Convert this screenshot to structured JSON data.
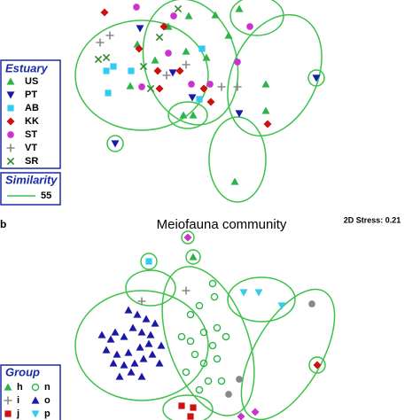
{
  "chart_data": [
    {
      "type": "scatter",
      "legend_title": "Estuary",
      "similarity": {
        "label": "Similarity",
        "value": 55
      },
      "series": [
        {
          "name": "US",
          "color": "#2db34a",
          "marker": "triangle-up",
          "x": [
            67,
            110,
            133,
            178,
            220,
            130,
            153,
            190,
            127,
            138,
            75,
            95,
            185,
            220,
            163
          ],
          "y": [
            123,
            190,
            202,
            180,
            125,
            162,
            155,
            210,
            90,
            90,
            170,
            152,
            15,
            95,
            203
          ]
        },
        {
          "name": "PT",
          "color": "#1a1aa6",
          "marker": "triangle-down",
          "x": [
            277,
            50,
            190,
            137,
            115,
            78
          ],
          "y": [
            132,
            58,
            92,
            110,
            138,
            188
          ]
        },
        {
          "name": "AB",
          "color": "#33ccee",
          "marker": "square",
          "x": [
            48,
            40,
            42,
            68,
            148,
            145
          ],
          "y": [
            145,
            140,
            115,
            140,
            165,
            108
          ]
        },
        {
          "name": "KK",
          "color": "#cc1111",
          "marker": "diamond",
          "x": [
            38,
            77,
            98,
            105,
            123,
            100,
            158,
            222,
            150
          ],
          "y": [
            206,
            165,
            140,
            190,
            140,
            120,
            105,
            80,
            120
          ]
        },
        {
          "name": "ST",
          "color": "#cc33cc",
          "marker": "circle",
          "x": [
            74,
            116,
            136,
            157,
            110,
            80,
            188,
            202
          ],
          "y": [
            212,
            202,
            125,
            125,
            160,
            122,
            150,
            190
          ]
        },
        {
          "name": "VT",
          "color": "#888888",
          "marker": "plus",
          "x": [
            33,
            44,
            130,
            170,
            188,
            108
          ],
          "y": [
            172,
            180,
            147,
            122,
            122,
            135
          ]
        },
        {
          "name": "SR",
          "color": "#338833",
          "marker": "cross",
          "x": [
            31,
            40,
            82,
            90,
            100,
            121
          ],
          "y": [
            153,
            155,
            145,
            120,
            178,
            210
          ]
        }
      ]
    },
    {
      "type": "scatter",
      "panel_label": "b",
      "title": "Meiofauna community",
      "stress": "2D Stress: 0.21",
      "legend_title": "Group",
      "series": [
        {
          "name": "h",
          "color": "#2db34a",
          "marker": "triangle-up",
          "x": [
            138
          ],
          "y": [
            184
          ]
        },
        {
          "name": "i",
          "color": "#888888",
          "marker": "plus",
          "x": [
            80,
            130
          ],
          "y": [
            134,
            146
          ]
        },
        {
          "name": "j",
          "color": "#cc1111",
          "marker": "square",
          "x": [
            125,
            138,
            135
          ],
          "y": [
            16,
            14,
            4
          ]
        },
        {
          "name": "n",
          "color": "#2db34a",
          "marker": "open-circle",
          "x": [
            160,
            162,
            145,
            135,
            125,
            135,
            150,
            165,
            160,
            175,
            140,
            150,
            165,
            130,
            155,
            145,
            170
          ],
          "y": [
            154,
            139,
            129,
            119,
            94,
            89,
            99,
            104,
            84,
            94,
            74,
            64,
            69,
            54,
            44,
            34,
            44
          ]
        },
        {
          "name": "o",
          "color": "#1a1aa6",
          "marker": "triangle-up",
          "x": [
            35,
            45,
            50,
            60,
            70,
            80,
            90,
            40,
            52,
            65,
            78,
            88,
            95,
            48,
            60,
            72,
            82,
            92,
            68,
            80,
            55,
            100,
            85,
            75,
            65,
            102
          ],
          "y": [
            96,
            91,
            99,
            94,
            104,
            99,
            96,
            79,
            74,
            76,
            82,
            86,
            109,
            64,
            62,
            64,
            69,
            74,
            54,
            49,
            49,
            64,
            114,
            119,
            124,
            84
          ]
        },
        {
          "name": "p",
          "color": "#33ccee",
          "marker": "triangle-down",
          "x": [
            212,
            238,
            195
          ],
          "y": [
            144,
            129,
            144
          ]
        },
        {
          "color": "#33ccee",
          "marker": "square",
          "x": [
            88
          ],
          "y": [
            179
          ]
        },
        {
          "color": "#cc33cc",
          "marker": "diamond",
          "x": [
            132,
            208,
            192
          ],
          "y": [
            206,
            9,
            4
          ]
        },
        {
          "color": "#cc1111",
          "marker": "diamond",
          "x": [
            278
          ],
          "y": [
            62
          ]
        },
        {
          "color": "#888888",
          "marker": "circle",
          "x": [
            272,
            190,
            178
          ],
          "y": [
            131,
            46,
            29
          ]
        }
      ]
    }
  ]
}
